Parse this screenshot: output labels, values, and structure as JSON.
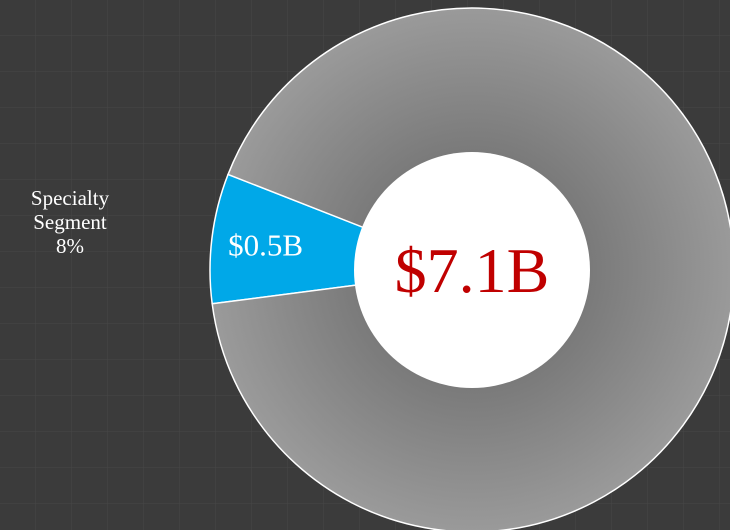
{
  "chart_data": {
    "type": "donut",
    "categories": [
      "Specialty Segment",
      null
    ],
    "values": [
      8,
      92
    ],
    "value_labels": [
      "8%",
      null
    ],
    "segment_labels": [
      "$0.5B",
      null
    ],
    "colors": [
      "#00a8e8",
      "#8c8c8c"
    ],
    "center_label": "$7.1B"
  }
}
